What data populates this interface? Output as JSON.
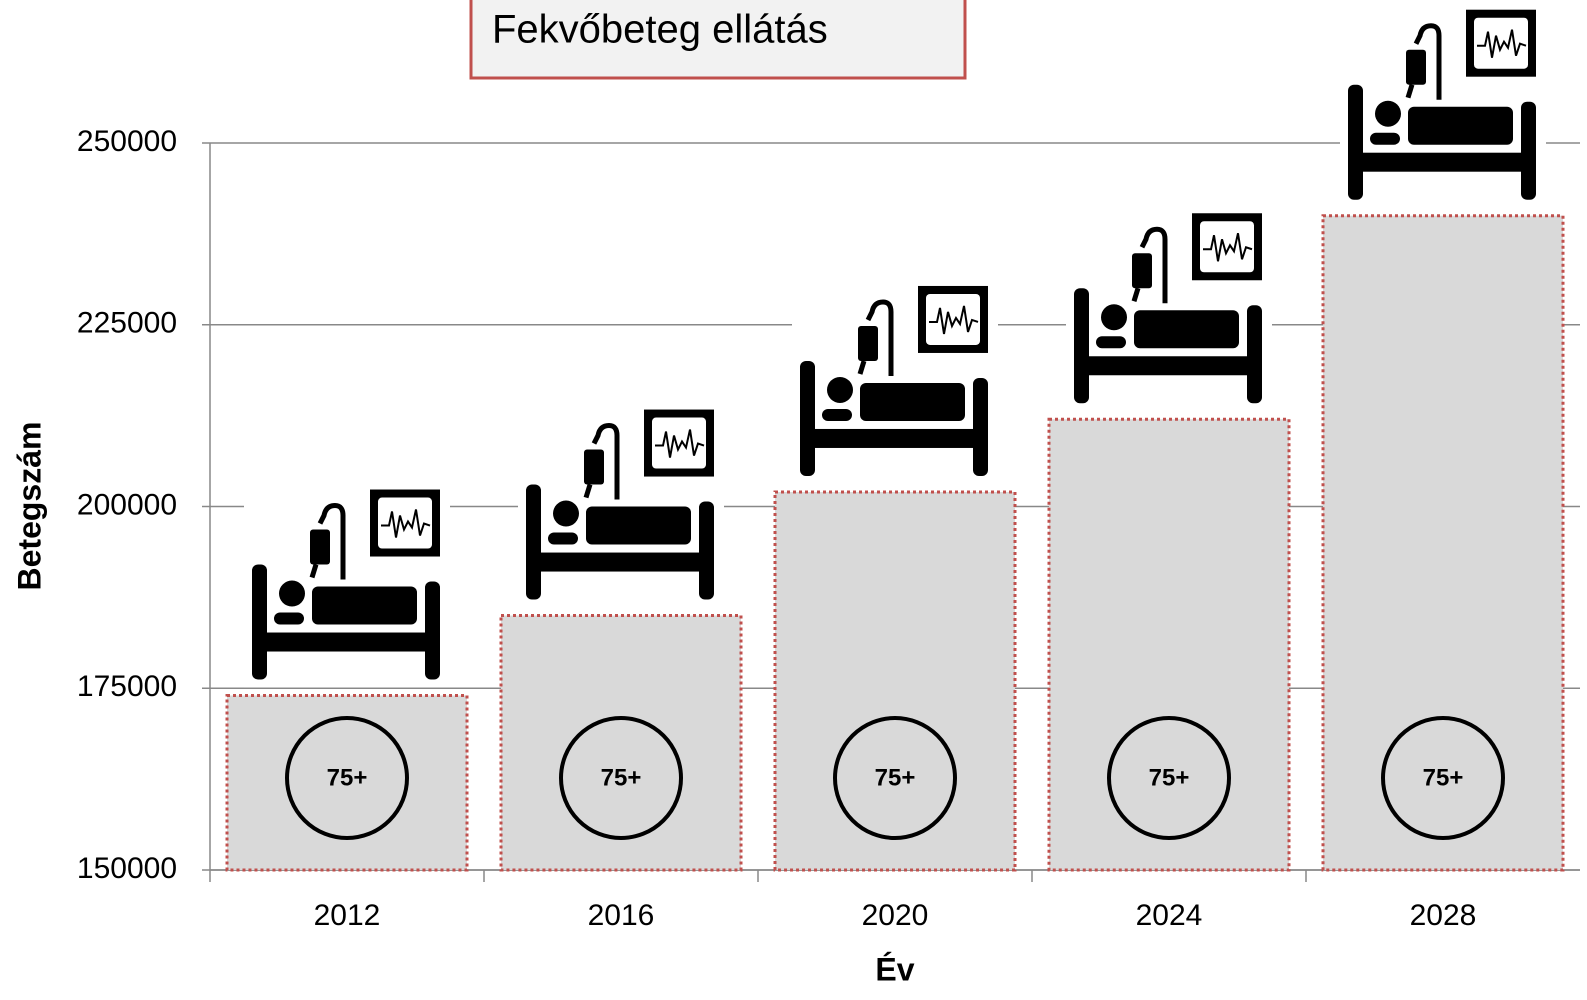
{
  "chart_data": {
    "type": "bar",
    "title": "Fekvőbeteg ellátás",
    "x_label": "Év",
    "y_label": "Betegszám",
    "categories": [
      "2012",
      "2016",
      "2020",
      "2024",
      "2028"
    ],
    "values": [
      174000,
      185000,
      202000,
      212000,
      240000
    ],
    "annotation": "75+",
    "color": "#d9d9d9",
    "edge_color": "#c0504d",
    "ylim": [
      150000,
      250000
    ],
    "yticks": [
      150000,
      175000,
      200000,
      225000,
      250000
    ],
    "grid": true
  }
}
